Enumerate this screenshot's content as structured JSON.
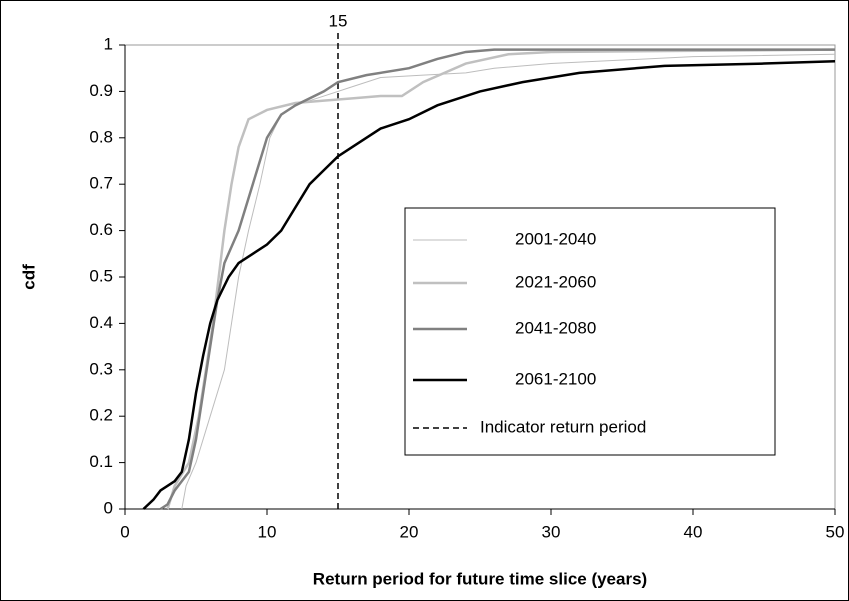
{
  "chart_data": {
    "type": "line",
    "x_label": "Return period for future time slice (years)",
    "y_label": "cdf",
    "xlim": [
      0,
      50
    ],
    "xticks": [
      0,
      10,
      20,
      30,
      40,
      50
    ],
    "ylim": [
      0,
      1
    ],
    "yticks": [
      0,
      0.1,
      0.2,
      0.3,
      0.4,
      0.5,
      0.6,
      0.7,
      0.8,
      0.9,
      1
    ],
    "series": [
      {
        "name": "2001-2040",
        "color": "#bdbdbd",
        "width": 1,
        "x": [
          4,
          4.3,
          5,
          6,
          7,
          7.5,
          8,
          8.7,
          9.5,
          10.2,
          11,
          12,
          14,
          16,
          18,
          21,
          24,
          26,
          30,
          40,
          50
        ],
        "values": [
          0,
          0.05,
          0.1,
          0.2,
          0.3,
          0.4,
          0.5,
          0.6,
          0.7,
          0.8,
          0.85,
          0.87,
          0.89,
          0.91,
          0.93,
          0.935,
          0.94,
          0.95,
          0.96,
          0.975,
          0.98
        ]
      },
      {
        "name": "2021-2060",
        "color": "#c0c0c0",
        "width": 2.5,
        "x": [
          3,
          3.5,
          4.5,
          5.2,
          5.7,
          6.2,
          6.6,
          7,
          7.5,
          8,
          8.7,
          10,
          12,
          14,
          16,
          18,
          19.5,
          21,
          24,
          27,
          30,
          50
        ],
        "values": [
          0,
          0.05,
          0.1,
          0.2,
          0.3,
          0.4,
          0.5,
          0.6,
          0.7,
          0.78,
          0.84,
          0.86,
          0.875,
          0.88,
          0.885,
          0.89,
          0.89,
          0.92,
          0.96,
          0.98,
          0.985,
          0.99
        ]
      },
      {
        "name": "2041-2080",
        "color": "#808080",
        "width": 2.5,
        "x": [
          2.5,
          3,
          3.5,
          4.5,
          5,
          5.5,
          6,
          6.5,
          7,
          8,
          9,
          10,
          11,
          12,
          14,
          15,
          17,
          20,
          22,
          24,
          26,
          50
        ],
        "values": [
          0,
          0.01,
          0.04,
          0.08,
          0.15,
          0.25,
          0.35,
          0.45,
          0.53,
          0.6,
          0.7,
          0.8,
          0.85,
          0.87,
          0.9,
          0.92,
          0.935,
          0.95,
          0.97,
          0.985,
          0.99,
          0.99
        ]
      },
      {
        "name": "2061-2100",
        "color": "#000000",
        "width": 2.5,
        "x": [
          1.3,
          2,
          2.5,
          3.5,
          4,
          4.5,
          5,
          5.5,
          6,
          6.5,
          7.3,
          8,
          9,
          10,
          11,
          12,
          13,
          14,
          15,
          16,
          18,
          20,
          22,
          25,
          28,
          32,
          38,
          45,
          50
        ],
        "values": [
          0,
          0.02,
          0.04,
          0.06,
          0.08,
          0.15,
          0.25,
          0.33,
          0.4,
          0.45,
          0.5,
          0.53,
          0.55,
          0.57,
          0.6,
          0.65,
          0.7,
          0.73,
          0.76,
          0.78,
          0.82,
          0.84,
          0.87,
          0.9,
          0.92,
          0.94,
          0.955,
          0.96,
          0.965
        ]
      }
    ],
    "reference_line": {
      "name": "Indicator return period",
      "x": 15
    }
  }
}
